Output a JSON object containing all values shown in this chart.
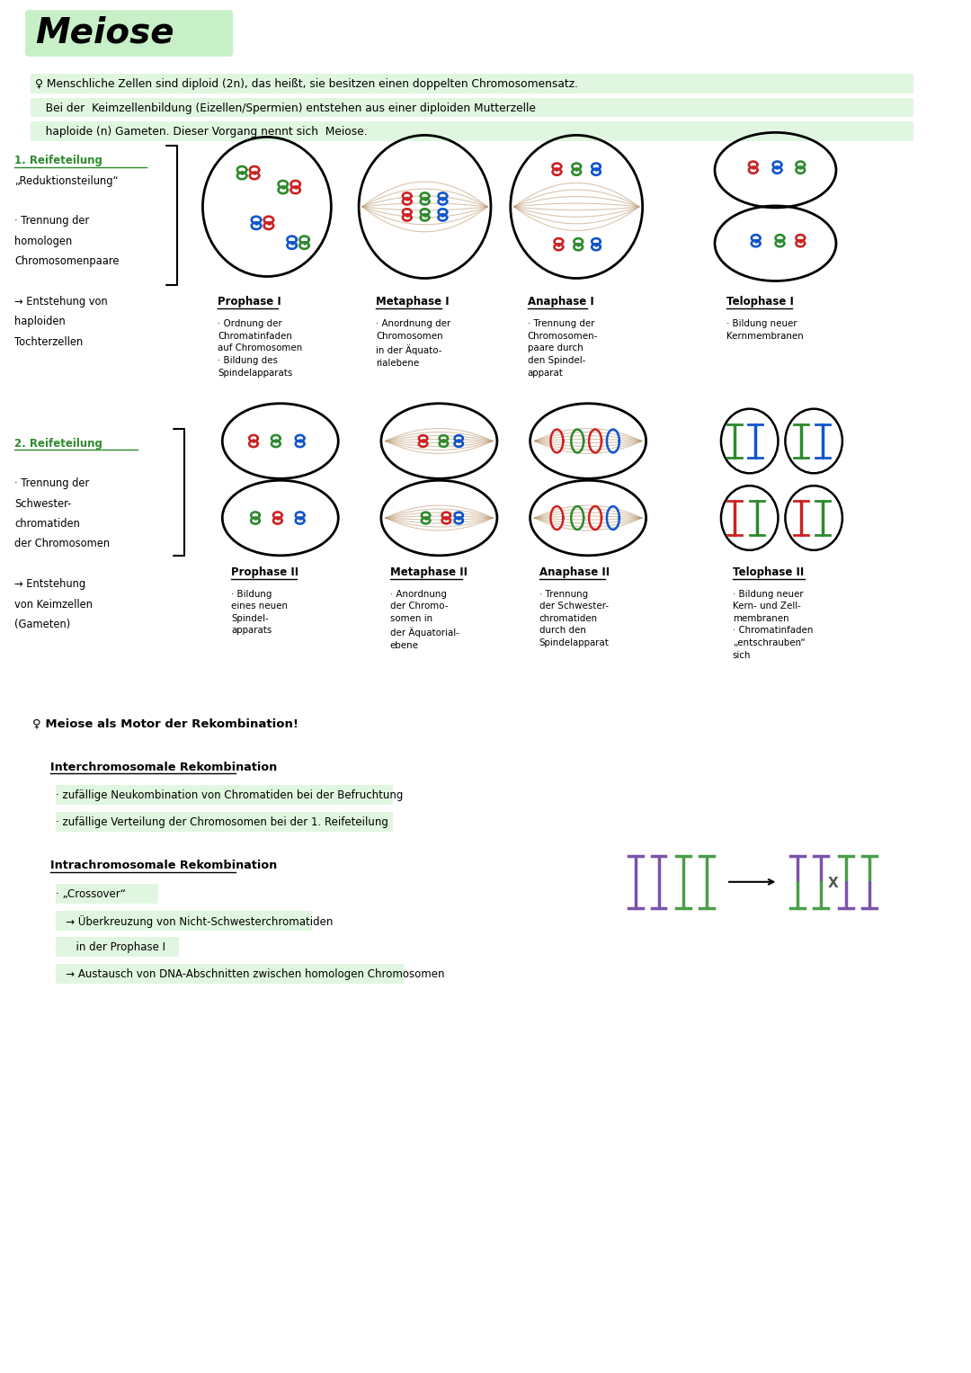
{
  "title": "Meiose",
  "title_bg": "#c8f0c8",
  "bg_color": "#ffffff",
  "text_color": "#000000",
  "green_color": "#2d8a2d",
  "highlight_green": "#c8f0c8",
  "intro_text": [
    "♀ Menschliche Zellen sind diploid (2n), das heißt, sie besitzen einen doppelten Chromosomensatz.",
    "   Bei der  Keimzellenbildung (Eizellen/Spermien) entstehen aus einer diploiden Mutterzelle",
    "   haploide (n) Gameten. Dieser Vorgang nennt sich  Meiose."
  ],
  "section1_label": [
    "1. Reifeteilung",
    "„Reduktionsteilung“",
    "",
    "· Trennung der",
    "homologen",
    "Chromosomenpaare",
    "",
    "→ Entstehung von",
    "haploiden",
    "Tochterzellen"
  ],
  "section2_label": [
    "2. Reifeteilung",
    "",
    "· Trennung der",
    "Schwester-",
    "chromatiden",
    "der Chromosomen",
    "",
    "→ Entstehung",
    "von Keimzellen",
    "(Gameten)"
  ],
  "phase1_titles": [
    "Prophase I",
    "Metaphase I",
    "Anaphase I",
    "Telophase I"
  ],
  "phase1_desc": [
    "· Ordnung der\nChromatinfaden\nauf Chromosomen\n· Bildung des\nSpindelapparats",
    "· Anordnung der\nChromosomen\nin der Äquato-\nrialebene",
    "· Trennung der\nChromosomen-\npaare durch\nden Spindel-\napparat",
    "· Bildung neuer\nKernmembranen"
  ],
  "phase2_titles": [
    "Prophase II",
    "Metaphase II",
    "Anaphase II",
    "Telophase II"
  ],
  "phase2_desc": [
    "· Bildung\neines neuen\nSpindel-\napparats",
    "· Anordnung\nder Chromo-\nsomen in\nder Äquatorial-\nebene",
    "· Trennung\nder Schwester-\nchromatiden\ndurch den\nSpindelapparat",
    "· Bildung neuer\nKern- und Zell-\nmembranen\n· Chromatinfaden\n„entschrauben“\nsich"
  ],
  "rekomb_title": "♀ Meiose als Motor der Rekombination!",
  "interchrom_title": "Interchromosomale Rekombination",
  "interchrom_desc": [
    "· zufällige Neukombination von Chromatiden bei der Befruchtung",
    "· zufällige Verteilung der Chromosomen bei der 1. Reifeteilung"
  ],
  "intrachrom_title": "Intrachromosomale Rekombination",
  "intrachrom_sub": "· „Crossover“",
  "intrachrom_desc": [
    "   → Überkreuzung von Nicht-Schwesterchromatiden",
    "      in der Prophase I",
    "   → Austausch von DNA-Abschnitten zwischen homologen Chromosomen"
  ],
  "spindle_color": "#b8956a",
  "red": "#cc2222",
  "blue": "#1155cc",
  "green2": "#2d8a2d",
  "purple": "#7b52ab",
  "green3": "#4a9e4a"
}
